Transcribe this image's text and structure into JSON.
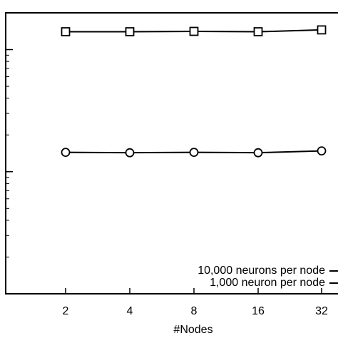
{
  "chart_data": {
    "type": "line",
    "x_label": "#Nodes",
    "categories": [
      "2",
      "4",
      "8",
      "16",
      "32"
    ],
    "series": [
      {
        "name": "10,000 neurons per node",
        "color": "#000000",
        "marker": "square",
        "values": [
          140,
          140,
          141,
          140,
          145
        ]
      },
      {
        "name": "1,000 neuron per node",
        "color": "#000000",
        "marker": "circle",
        "values": [
          14.4,
          14.3,
          14.4,
          14.3,
          14.8
        ]
      }
    ],
    "ylim": [
      1,
      200
    ],
    "yticks": [
      10,
      100
    ],
    "log_y": true,
    "legend": "lower-right"
  }
}
